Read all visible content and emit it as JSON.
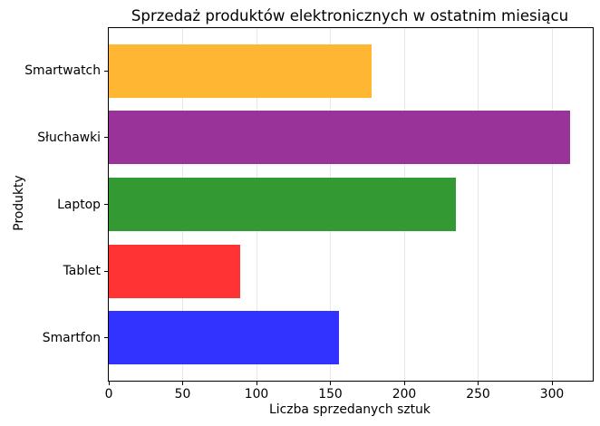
{
  "chart_data": {
    "type": "bar",
    "orientation": "horizontal",
    "title": "Sprzedaż produktów elektronicznych w ostatnim miesiącu",
    "xlabel": "Liczba sprzedanych sztuk",
    "ylabel": "Produkty",
    "categories": [
      "Smartfon",
      "Tablet",
      "Laptop",
      "Słuchawki",
      "Smartwatch"
    ],
    "values": [
      156,
      89,
      235,
      312,
      178
    ],
    "bar_colors": [
      "#3333ff",
      "#ff3333",
      "#339933",
      "#993399",
      "#ffb733"
    ],
    "xlim": [
      0,
      327.6
    ],
    "xticks": [
      0,
      50,
      100,
      150,
      200,
      250,
      300
    ],
    "grid": "x",
    "grid_color": "#e7e7e7",
    "axis_color": "#000000",
    "background_color": "#ffffff",
    "bar_height_fraction": 0.8,
    "legend_position": "none"
  }
}
